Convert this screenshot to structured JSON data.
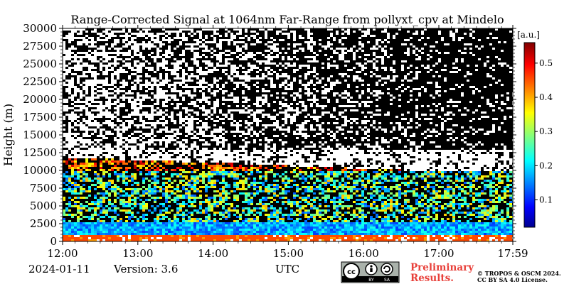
{
  "chart_data": {
    "type": "heatmap",
    "title": "Range-Corrected Signal at 1064nm Far-Range from pollyxt_cpv at Mindelo",
    "xlabel": "UTC",
    "ylabel": "Height (m)",
    "x_tick_labels": [
      "12:00",
      "13:00",
      "14:00",
      "15:00",
      "16:00",
      "17:00",
      "17:59"
    ],
    "x_ticks_hours": [
      12.0,
      13.0,
      14.0,
      15.0,
      16.0,
      17.0,
      17.983
    ],
    "xlim_hours": [
      12.0,
      17.983
    ],
    "y_ticks": [
      0,
      2500,
      5000,
      7500,
      10000,
      12500,
      15000,
      17500,
      20000,
      22500,
      25000,
      27500,
      30000
    ],
    "ylim": [
      0,
      30000
    ],
    "colorbar": {
      "unit_label": "[a.u.]",
      "ticks": [
        0.1,
        0.2,
        0.3,
        0.4,
        0.5
      ],
      "range": [
        0.02,
        0.56
      ],
      "colormap": "jet"
    },
    "features": {
      "surface_layer": {
        "height_range_m": [
          0,
          1000
        ],
        "signal": 0.5
      },
      "boundary_layer": {
        "height_range_m": [
          1000,
          3000
        ],
        "signal": 0.12
      },
      "aerosol_layer": {
        "height_range_m": [
          3000,
          10000
        ],
        "signal": 0.25
      },
      "cloud_layer": {
        "height_range_m": [
          10000,
          13000
        ],
        "signal": 0.45
      },
      "noise_region": {
        "height_range_m": [
          13000,
          30000
        ]
      }
    }
  },
  "footer": {
    "date": "2024-01-11",
    "version": "Version: 3.6",
    "preliminary": "Preliminary\nResults.",
    "copyright_line1": "© TROPOS & OSCM 2024.",
    "copyright_line2": "CC BY SA 4.0 License.",
    "license_badge": {
      "by": "BY",
      "sa": "SA"
    }
  },
  "colors": {
    "background_plot": "#000000",
    "preliminary_text": "#e8403a"
  }
}
